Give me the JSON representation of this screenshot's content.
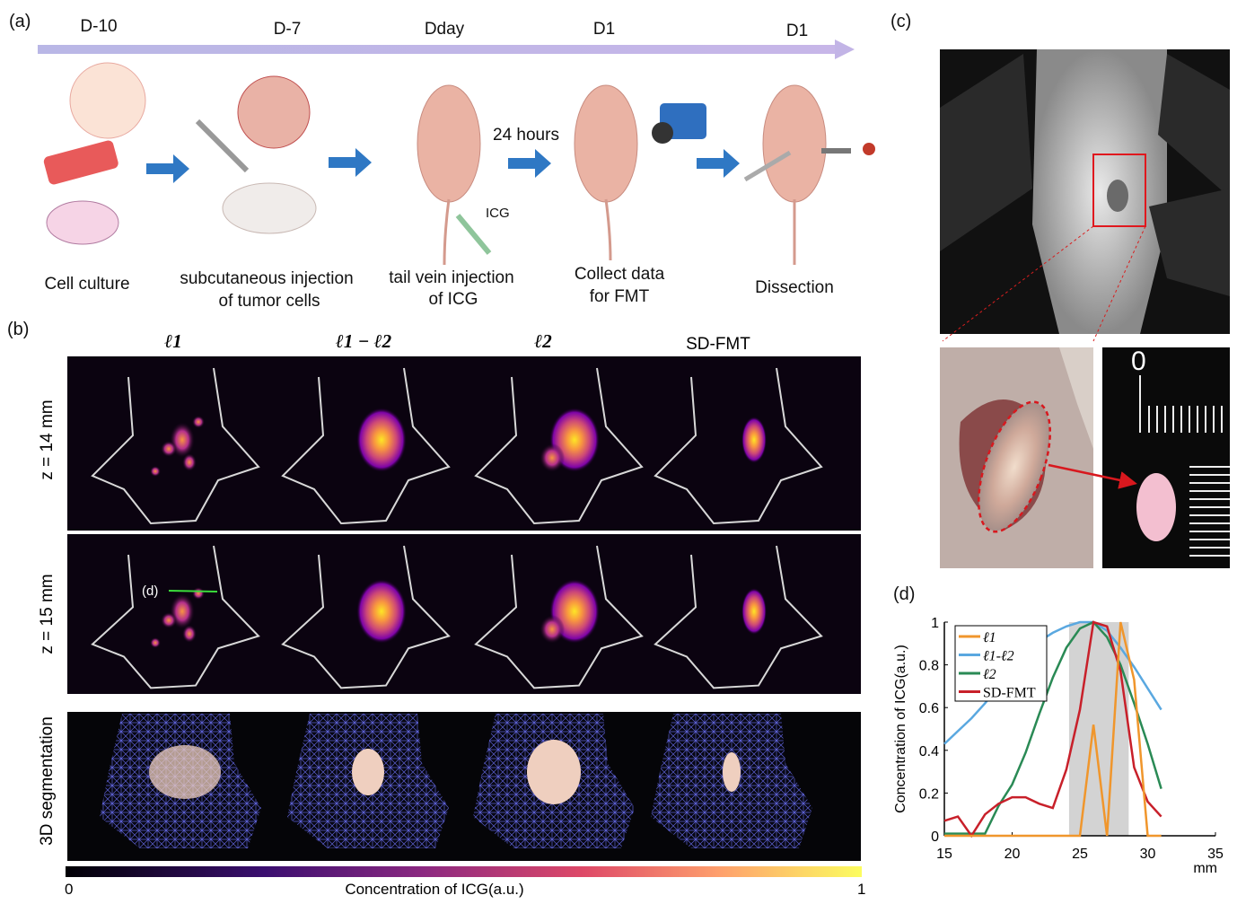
{
  "panel_labels": {
    "a": "(a)",
    "b": "(b)",
    "c": "(c)",
    "d": "(d)"
  },
  "timeline": {
    "days": [
      "D-10",
      "D-7",
      "Dday",
      "D1",
      "D1"
    ],
    "steps": [
      {
        "line1": "Cell culture",
        "line2": ""
      },
      {
        "line1": "subcutaneous injection",
        "line2": "of tumor cells"
      },
      {
        "line1": "tail vein injection",
        "line2": "of ICG"
      },
      {
        "line1": "Collect data",
        "line2": "for FMT"
      },
      {
        "line1": "Dissection",
        "line2": ""
      }
    ],
    "interval_label": "24 hours",
    "icg_label": "ICG"
  },
  "grid": {
    "columns": [
      "ℓ1",
      "ℓ1 − ℓ2",
      "ℓ2",
      "SD-FMT"
    ],
    "rows": [
      "z = 14 mm",
      "z = 15 mm",
      "3D segmentation"
    ],
    "profile_marker": "(d)",
    "colorbar": {
      "min": "0",
      "max": "1",
      "label": "Concentration of ICG(a.u.)",
      "colormap": "inferno/plasma"
    }
  },
  "chart_data": {
    "type": "line",
    "xlabel": "mm",
    "ylabel": "Concentration of ICG(a.u.)",
    "xlim": [
      15,
      35
    ],
    "ylim": [
      0,
      1
    ],
    "xticks": [
      "15",
      "20",
      "25",
      "30",
      "35"
    ],
    "yticks": [
      "0",
      "0.2",
      "0.4",
      "0.6",
      "0.8",
      "1"
    ],
    "legend_position": "top-left",
    "shaded_region": [
      24.2,
      28.6
    ],
    "x": [
      15,
      16,
      17,
      18,
      19,
      20,
      21,
      22,
      23,
      24,
      25,
      26,
      27,
      28,
      29,
      30,
      31
    ],
    "series": [
      {
        "name": "ℓ1",
        "color": "#f0962c",
        "values": [
          0,
          0,
          0,
          0,
          0,
          0,
          0,
          0,
          0,
          0,
          0,
          0.52,
          0,
          1.0,
          0.73,
          0,
          0
        ]
      },
      {
        "name": "ℓ1-ℓ2",
        "color": "#5aa8e0",
        "values": [
          0.43,
          0.49,
          0.55,
          0.62,
          0.7,
          0.78,
          0.85,
          0.91,
          0.95,
          0.98,
          1.0,
          1.0,
          0.96,
          0.88,
          0.79,
          0.69,
          0.59
        ]
      },
      {
        "name": "ℓ2",
        "color": "#2a8a55",
        "values": [
          0.01,
          0.01,
          0.01,
          0.01,
          0.14,
          0.24,
          0.39,
          0.57,
          0.74,
          0.88,
          0.97,
          1.0,
          0.93,
          0.8,
          0.62,
          0.43,
          0.22
        ]
      },
      {
        "name": "SD-FMT",
        "color": "#c8202a",
        "values": [
          0.07,
          0.09,
          0,
          0.1,
          0.15,
          0.18,
          0.18,
          0.15,
          0.13,
          0.31,
          0.59,
          1.0,
          0.98,
          0.77,
          0.32,
          0.16,
          0.09
        ]
      }
    ]
  }
}
